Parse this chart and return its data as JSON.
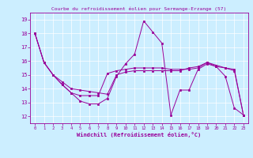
{
  "title": "Courbe du refroidissement éolien pour Sermange-Erzange (57)",
  "xlabel": "Windchill (Refroidissement éolien,°C)",
  "background_color": "#cceeff",
  "line_color": "#990099",
  "xlim": [
    -0.5,
    23.5
  ],
  "ylim": [
    11.5,
    19.5
  ],
  "yticks": [
    12,
    13,
    14,
    15,
    16,
    17,
    18,
    19
  ],
  "xticks": [
    0,
    1,
    2,
    3,
    4,
    5,
    6,
    7,
    8,
    9,
    10,
    11,
    12,
    13,
    14,
    15,
    16,
    17,
    18,
    19,
    20,
    21,
    22,
    23
  ],
  "series": [
    [
      18.0,
      15.9,
      15.0,
      14.3,
      13.7,
      13.1,
      12.9,
      12.9,
      13.3,
      14.9,
      15.8,
      16.5,
      18.9,
      18.1,
      17.3,
      12.1,
      13.9,
      13.9,
      15.4,
      15.8,
      15.6,
      14.9,
      12.6,
      12.1
    ],
    [
      18.0,
      15.9,
      15.0,
      14.3,
      13.7,
      13.5,
      13.5,
      13.5,
      15.1,
      15.3,
      15.4,
      15.5,
      15.5,
      15.5,
      15.5,
      15.4,
      15.4,
      15.4,
      15.5,
      15.9,
      15.7,
      15.5,
      15.3,
      12.1
    ],
    [
      18.0,
      15.9,
      15.0,
      14.5,
      14.0,
      13.9,
      13.8,
      13.7,
      13.6,
      15.0,
      15.2,
      15.3,
      15.3,
      15.3,
      15.3,
      15.3,
      15.3,
      15.5,
      15.6,
      15.9,
      15.6,
      15.5,
      15.4,
      12.1
    ]
  ]
}
